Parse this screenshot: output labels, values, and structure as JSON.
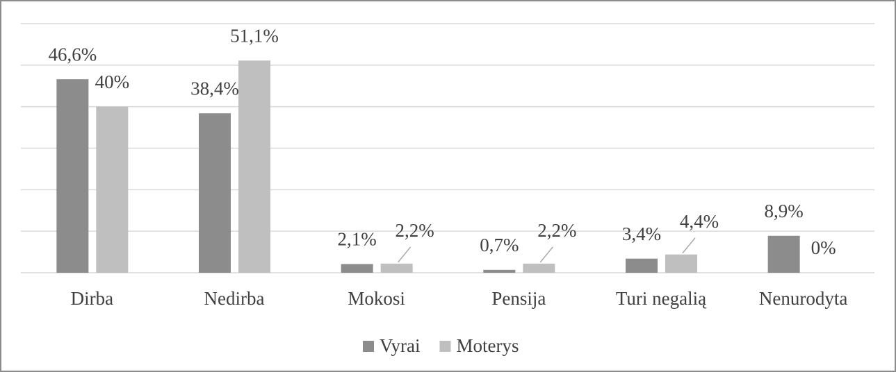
{
  "chart_data": {
    "type": "bar",
    "categories": [
      "Dirba",
      "Nedirba",
      "Mokosi",
      "Pensija",
      "Turi negalią",
      "Nenurodyta"
    ],
    "series": [
      {
        "name": "Vyrai",
        "color": "#8c8c8c",
        "values": [
          46.6,
          38.4,
          2.1,
          0.7,
          3.4,
          8.9
        ],
        "value_labels": [
          "46,6%",
          "38,4%",
          "2,1%",
          "0,7%",
          "3,4%",
          "8,9%"
        ]
      },
      {
        "name": "Moterys",
        "color": "#bfbfbf",
        "values": [
          40,
          51.1,
          2.2,
          2.2,
          4.4,
          0
        ],
        "value_labels": [
          "40%",
          "51,1%",
          "2,2%",
          "2,2%",
          "4,4%",
          "0%"
        ]
      }
    ],
    "ylim": [
      0,
      60
    ],
    "yticks": [
      0,
      10,
      20,
      30,
      40,
      50,
      60
    ],
    "grid": true,
    "legend": "bottom"
  }
}
